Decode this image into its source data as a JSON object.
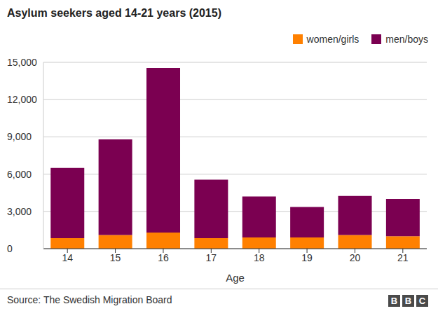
{
  "chart_data": {
    "type": "bar",
    "title": "Asylum seekers aged 14-21 years (2015)",
    "x_label": "Age",
    "source": "Source: The Swedish Migration Board",
    "logo": "BBC",
    "categories": [
      "14",
      "15",
      "16",
      "17",
      "18",
      "19",
      "20",
      "21"
    ],
    "series": [
      {
        "name": "women/girls",
        "color": "#ff8000",
        "values": [
          850,
          1100,
          1300,
          850,
          900,
          900,
          1100,
          1000
        ]
      },
      {
        "name": "men/boys",
        "color": "#7b0051",
        "values": [
          5650,
          7700,
          13250,
          4700,
          3300,
          2450,
          3150,
          3000
        ]
      }
    ],
    "ylim": [
      0,
      15000
    ],
    "yticks": [
      0,
      {
        "value": 3000,
        "label": "3,000"
      },
      {
        "value": 6000,
        "label": "6,000"
      },
      {
        "value": 9000,
        "label": "9,000"
      },
      {
        "value": 12000,
        "label": "12,000"
      },
      {
        "value": 15000,
        "label": "15,000"
      }
    ],
    "stacked": true,
    "grid": true,
    "legend": "top-right"
  }
}
